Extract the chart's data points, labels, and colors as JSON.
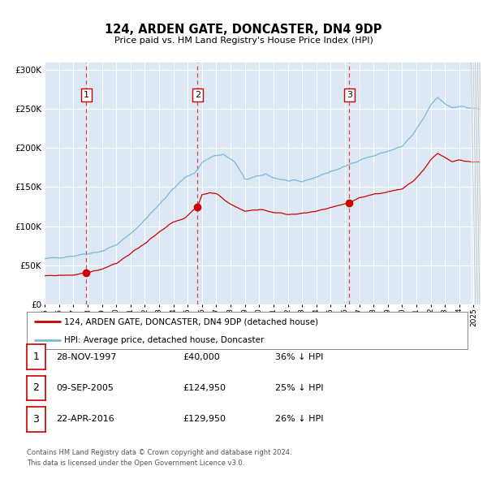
{
  "title": "124, ARDEN GATE, DONCASTER, DN4 9DP",
  "subtitle": "Price paid vs. HM Land Registry's House Price Index (HPI)",
  "background_color": "#ffffff",
  "plot_bg": "#dce9f5",
  "hpi_color": "#7ab8d9",
  "price_color": "#cc0000",
  "marker_color": "#cc0000",
  "vline_color": "#dd4444",
  "xlim_start": 1995.0,
  "xlim_end": 2025.5,
  "ylim_min": 0,
  "ylim_max": 310000,
  "sales": [
    {
      "num": 1,
      "year": 1997.91,
      "price": 40000,
      "label": "28-NOV-1997",
      "pct": "36% ↓ HPI"
    },
    {
      "num": 2,
      "year": 2005.69,
      "price": 124950,
      "label": "09-SEP-2005",
      "pct": "25% ↓ HPI"
    },
    {
      "num": 3,
      "year": 2016.31,
      "price": 129950,
      "label": "22-APR-2016",
      "pct": "26% ↓ HPI"
    }
  ],
  "legend_line1": "124, ARDEN GATE, DONCASTER, DN4 9DP (detached house)",
  "legend_line2": "HPI: Average price, detached house, Doncaster",
  "footer1": "Contains HM Land Registry data © Crown copyright and database right 2024.",
  "footer2": "This data is licensed under the Open Government Licence v3.0.",
  "hpi_anchors": [
    [
      1995.0,
      58000
    ],
    [
      1996.0,
      60000
    ],
    [
      1997.0,
      62000
    ],
    [
      1998.0,
      65000
    ],
    [
      1999.0,
      68000
    ],
    [
      2000.0,
      76000
    ],
    [
      2001.0,
      90000
    ],
    [
      2002.0,
      108000
    ],
    [
      2003.0,
      128000
    ],
    [
      2004.0,
      148000
    ],
    [
      2004.8,
      162000
    ],
    [
      2005.5,
      168000
    ],
    [
      2006.0,
      182000
    ],
    [
      2006.8,
      190000
    ],
    [
      2007.5,
      192000
    ],
    [
      2008.3,
      182000
    ],
    [
      2009.0,
      160000
    ],
    [
      2009.8,
      163000
    ],
    [
      2010.5,
      167000
    ],
    [
      2011.0,
      162000
    ],
    [
      2012.0,
      158000
    ],
    [
      2013.0,
      157000
    ],
    [
      2014.0,
      163000
    ],
    [
      2015.0,
      170000
    ],
    [
      2016.0,
      176000
    ],
    [
      2017.0,
      185000
    ],
    [
      2018.0,
      190000
    ],
    [
      2019.0,
      196000
    ],
    [
      2020.0,
      202000
    ],
    [
      2020.8,
      218000
    ],
    [
      2021.5,
      238000
    ],
    [
      2022.0,
      255000
    ],
    [
      2022.5,
      265000
    ],
    [
      2023.0,
      257000
    ],
    [
      2023.5,
      252000
    ],
    [
      2024.0,
      254000
    ],
    [
      2024.5,
      252000
    ],
    [
      2025.3,
      250000
    ]
  ],
  "price_anchors": [
    [
      1995.0,
      36000
    ],
    [
      1996.0,
      37000
    ],
    [
      1997.0,
      37500
    ],
    [
      1997.91,
      40000
    ],
    [
      1999.0,
      45000
    ],
    [
      2000.0,
      52000
    ],
    [
      2001.0,
      65000
    ],
    [
      2002.0,
      78000
    ],
    [
      2003.0,
      92000
    ],
    [
      2004.0,
      105000
    ],
    [
      2004.8,
      110000
    ],
    [
      2005.69,
      124950
    ],
    [
      2006.0,
      140000
    ],
    [
      2006.5,
      143000
    ],
    [
      2007.0,
      142000
    ],
    [
      2007.5,
      135000
    ],
    [
      2008.0,
      128000
    ],
    [
      2009.0,
      119000
    ],
    [
      2010.0,
      122000
    ],
    [
      2011.0,
      118000
    ],
    [
      2012.0,
      115000
    ],
    [
      2013.0,
      116000
    ],
    [
      2014.0,
      119000
    ],
    [
      2015.0,
      124000
    ],
    [
      2016.31,
      129950
    ],
    [
      2017.0,
      136000
    ],
    [
      2018.0,
      140000
    ],
    [
      2019.0,
      144000
    ],
    [
      2020.0,
      148000
    ],
    [
      2020.8,
      158000
    ],
    [
      2021.5,
      172000
    ],
    [
      2022.0,
      185000
    ],
    [
      2022.5,
      193000
    ],
    [
      2023.0,
      188000
    ],
    [
      2023.5,
      182000
    ],
    [
      2024.0,
      185000
    ],
    [
      2024.5,
      183000
    ],
    [
      2025.3,
      182000
    ]
  ]
}
